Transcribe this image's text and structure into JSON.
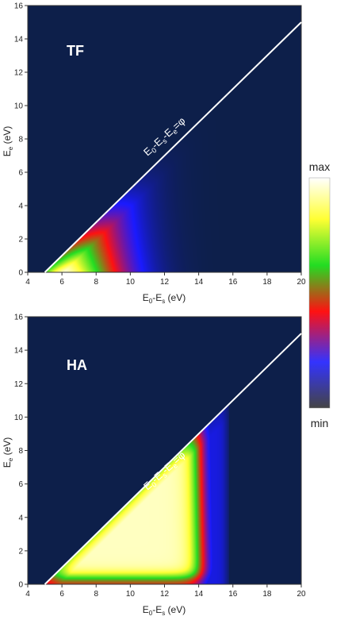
{
  "chart_data": [
    {
      "type": "heatmap",
      "panel_label": "TF",
      "xlabel": "E",
      "xlabel_sub1": "0",
      "xlabel_mid": "-E",
      "xlabel_sub2": "s",
      "xlabel_unit": " (eV)",
      "ylabel": "E",
      "ylabel_sub": "e",
      "ylabel_unit": " (eV)",
      "xlim": [
        4,
        20
      ],
      "ylim": [
        0,
        16
      ],
      "xticks": [
        4,
        6,
        8,
        10,
        12,
        14,
        16,
        18,
        20
      ],
      "yticks": [
        0,
        2,
        4,
        6,
        8,
        10,
        12,
        14,
        16
      ],
      "threshold_line": {
        "x": [
          5,
          20
        ],
        "y": [
          0,
          15
        ],
        "label": "E0-Es-Ee=φ"
      },
      "annotation": {
        "E": "E",
        "s0": "0",
        "m1": "-E",
        "s1": "s",
        "m2": "-E",
        "s2": "e",
        "eq": "=φ"
      },
      "background_color": "#0d1f4a",
      "intensity_profile": "peaks near threshold corner, decays with distance from x=5; blue tail to x≈16"
    },
    {
      "type": "heatmap",
      "panel_label": "HA",
      "xlabel": "E",
      "xlabel_sub1": "0",
      "xlabel_mid": "-E",
      "xlabel_sub2": "s",
      "xlabel_unit": " (eV)",
      "ylabel": "E",
      "ylabel_sub": "e",
      "ylabel_unit": " (eV)",
      "xlim": [
        4,
        20
      ],
      "ylim": [
        0,
        16
      ],
      "xticks": [
        4,
        6,
        8,
        10,
        12,
        14,
        16,
        18,
        20
      ],
      "yticks": [
        0,
        2,
        4,
        6,
        8,
        10,
        12,
        14,
        16
      ],
      "threshold_line": {
        "x": [
          5,
          20
        ],
        "y": [
          0,
          15
        ],
        "label": "E0-Es-Ee=φ"
      },
      "annotation": {
        "E": "E",
        "s0": "0",
        "m1": "-E",
        "s1": "s",
        "m2": "-E",
        "s2": "e",
        "eq": "=φ"
      },
      "background_color": "#0d1f4a",
      "intensity_profile": "high plateau across wedge, drops sharply near x≈14-15 and near Ee=0"
    }
  ],
  "colorbar": {
    "max_label": "max",
    "min_label": "min",
    "stops": [
      "#ffffff",
      "#ffff33",
      "#22dd22",
      "#ff1111",
      "#3333ff",
      "#444444"
    ]
  }
}
